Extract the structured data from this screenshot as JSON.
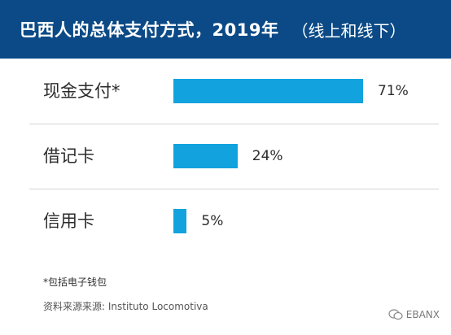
{
  "header": {
    "title": "巴西人的总体支付方式，2019年",
    "subtitle": "（线上和线下）"
  },
  "chart_data": {
    "type": "bar",
    "orientation": "horizontal",
    "title": "巴西人的总体支付方式，2019年",
    "subtitle": "（线上和线下）",
    "categories": [
      "现金支付*",
      "借记卡",
      "信用卡"
    ],
    "values": [
      71,
      24,
      5
    ],
    "value_labels": [
      "71%",
      "24%",
      "5%"
    ],
    "unit": "%",
    "xlim": [
      0,
      100
    ],
    "grid": false,
    "legend": "none",
    "bar_color": "#12a3df"
  },
  "footnote": "*包括电子钱包",
  "source": "资料来源来源: Instituto Locomotiva",
  "watermark": {
    "text": "EBANX",
    "icon": "wechat-icon"
  },
  "colors": {
    "header_bg": "#0b4a86",
    "bar": "#12a3df",
    "divider": "#d4d4d4"
  }
}
